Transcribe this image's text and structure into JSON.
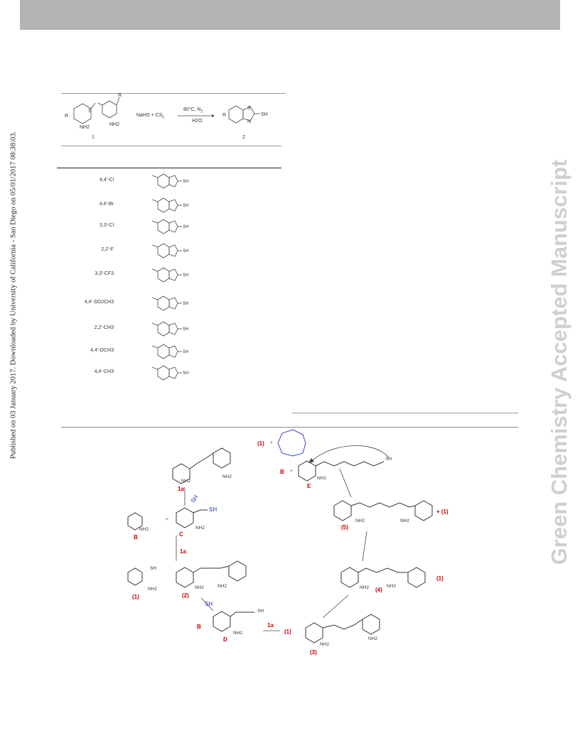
{
  "sidebar": {
    "published_note": "Published on 03 January 2017. Downloaded by University of California - San Diego on 05/01/2017 08:38:03.",
    "watermark": "Green Chemistry Accepted Manuscript"
  },
  "table": {
    "reaction": {
      "reagents": "NaHS + CS",
      "reagents_sub": "2",
      "conditions_top": "80°C, N",
      "conditions_top_sub": "2",
      "conditions_bottom": "H2O",
      "label_start": "1",
      "label_product": "2",
      "group_r": "R",
      "group_nh2": "NH2",
      "group_s": "S",
      "group_sh": "SH",
      "group_n": "N"
    },
    "rows": [
      {
        "substituent": "4,4'-Cl"
      },
      {
        "substituent": "4,4'-Br"
      },
      {
        "substituent": "3,3'-Cl"
      },
      {
        "substituent": "2,2'-F"
      },
      {
        "substituent": "3,3'-CF3"
      },
      {
        "substituent": "4,4'-SO2CH3"
      },
      {
        "substituent": "2,2'-CH3"
      },
      {
        "substituent": "4,4'-OCH3"
      },
      {
        "substituent": "4,4'-CH3"
      }
    ]
  },
  "scheme": {
    "labels": {
      "l1a_top": "1a",
      "l1a_mid": "1a",
      "l1a_bottom": "1a",
      "B1": "B",
      "B2": "B",
      "B3": "B",
      "C": "C",
      "D": "D",
      "E": "E",
      "n1_left": "(1)",
      "n1_bottom": "(1)",
      "n1_top": "(1)",
      "n1_right5": "+ (1)",
      "n1_right4": "(1)",
      "n2": "(2)",
      "n3": "(3)",
      "n4": "(4)",
      "n5": "(5)",
      "sh": "SH",
      "nh2": "NH2",
      "plus": "+"
    }
  }
}
